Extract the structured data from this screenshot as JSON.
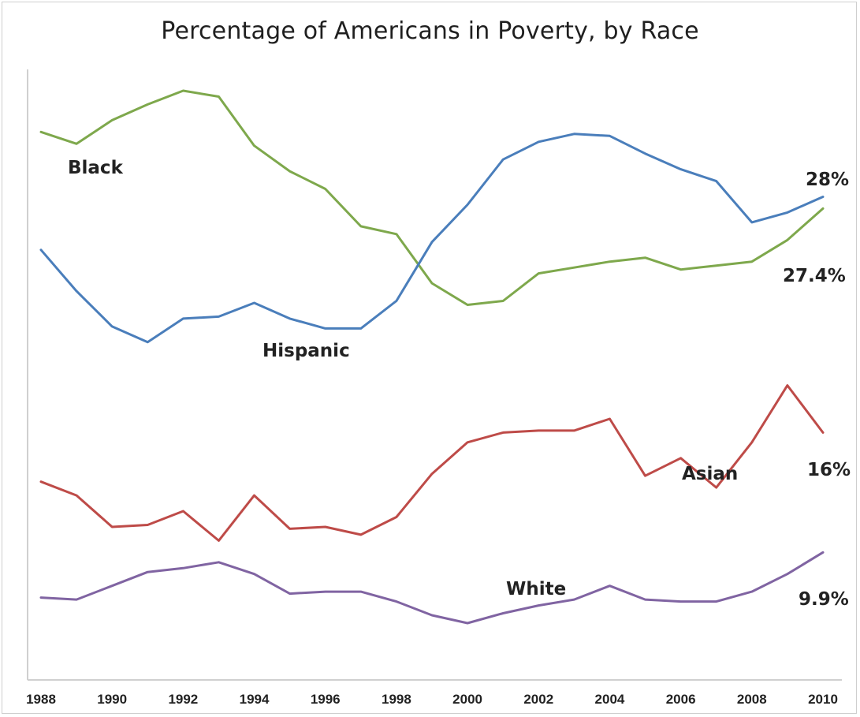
{
  "chart_data": {
    "type": "line",
    "title": "Percentage of Americans in Poverty, by Race",
    "x": [
      1988,
      1989,
      1990,
      1991,
      1992,
      1993,
      1994,
      1995,
      1996,
      1997,
      1998,
      1999,
      2000,
      2001,
      2002,
      2003,
      2004,
      2005,
      2006,
      2007,
      2008,
      2009,
      2010
    ],
    "x_tick_labels": [
      "1988",
      "1990",
      "1992",
      "1994",
      "1996",
      "1998",
      "2000",
      "2002",
      "2004",
      "2006",
      "2008",
      "2010"
    ],
    "grid": false,
    "legend": "none",
    "series": [
      {
        "name": "Black",
        "color": "#7ea84c",
        "values": [
          31.3,
          30.7,
          31.9,
          32.7,
          33.4,
          33.1,
          30.6,
          29.3,
          28.4,
          26.5,
          26.1,
          23.6,
          22.5,
          22.7,
          24.1,
          24.4,
          24.7,
          24.9,
          24.3,
          24.5,
          24.7,
          25.8,
          27.4
        ]
      },
      {
        "name": "Hispanic",
        "color": "#4a7ebb",
        "values": [
          25.3,
          23.2,
          21.4,
          20.6,
          21.8,
          21.9,
          22.6,
          21.8,
          21.3,
          21.3,
          22.7,
          25.7,
          27.6,
          29.9,
          30.8,
          31.2,
          31.1,
          30.2,
          29.4,
          28.8,
          26.7,
          27.2,
          28.0
        ]
      },
      {
        "name": "Asian",
        "color": "#be4b48",
        "values": [
          13.5,
          12.8,
          11.2,
          11.3,
          12.0,
          10.5,
          12.8,
          11.1,
          11.2,
          10.8,
          11.7,
          13.9,
          15.5,
          16.0,
          16.1,
          16.1,
          16.7,
          13.8,
          14.7,
          13.2,
          15.5,
          18.4,
          16.0
        ]
      },
      {
        "name": "White",
        "color": "#8064a2",
        "values": [
          7.6,
          7.5,
          8.2,
          8.9,
          9.1,
          9.4,
          8.8,
          7.8,
          7.9,
          7.9,
          7.4,
          6.7,
          6.3,
          6.8,
          7.2,
          7.5,
          8.2,
          7.5,
          7.4,
          7.4,
          7.9,
          8.8,
          9.9
        ]
      }
    ],
    "annotations": {
      "black_label": "Black",
      "hispanic_label": "Hispanic",
      "asian_label": "Asian",
      "white_label": "White",
      "hispanic_end": "28%",
      "black_end": "27.4%",
      "asian_end": "16%",
      "white_end": "9.9%"
    }
  }
}
